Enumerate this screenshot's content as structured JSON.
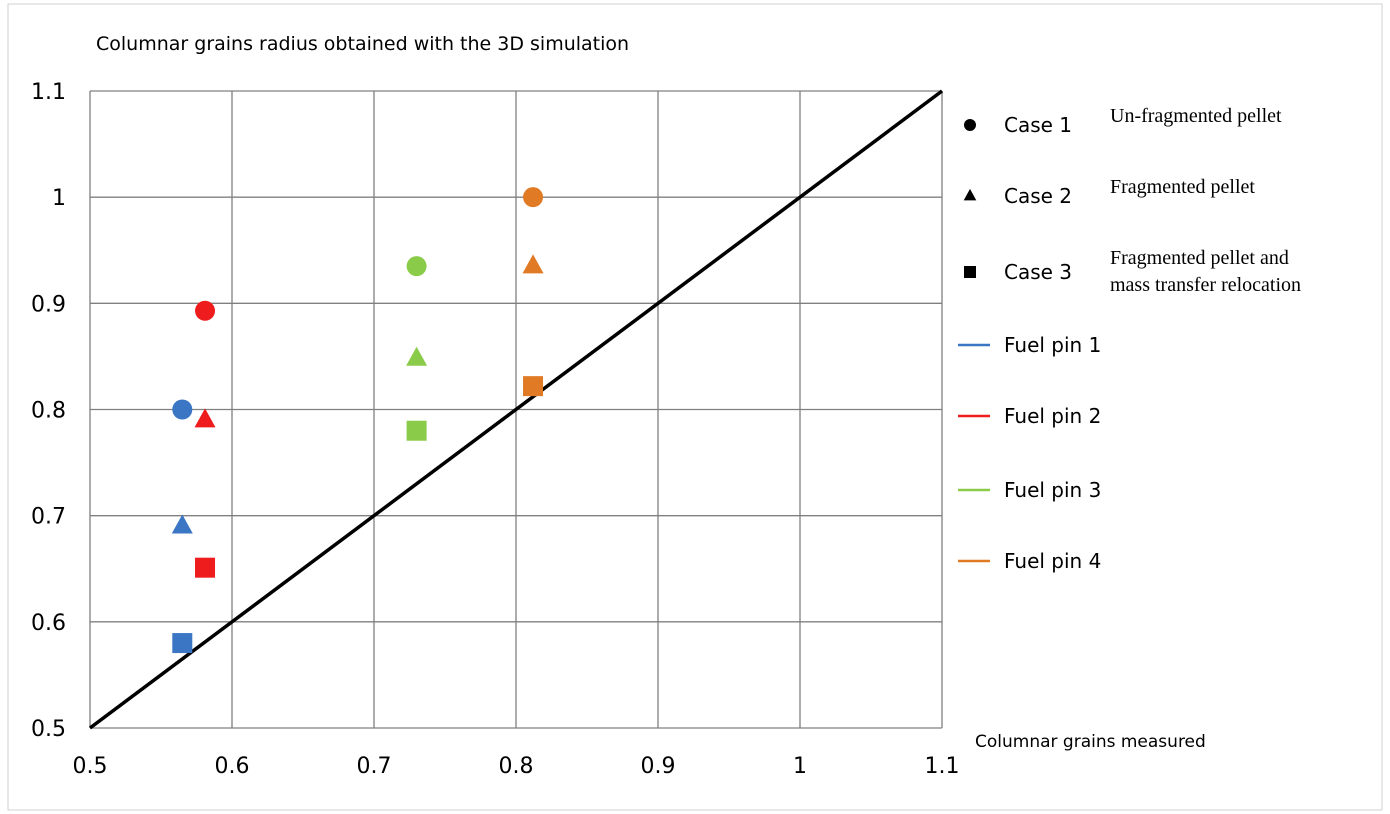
{
  "chart_data": {
    "type": "scatter",
    "title": "Columnar grains radius obtained with the 3D simulation",
    "xlabel": "Columnar grains measured",
    "ylabel": "",
    "xlim": [
      0.5,
      1.1
    ],
    "ylim": [
      0.5,
      1.1
    ],
    "x_ticks": [
      "0.5",
      "0.6",
      "0.7",
      "0.8",
      "0.9",
      "1",
      "1.1"
    ],
    "y_ticks": [
      "0.5",
      "0.6",
      "0.7",
      "0.8",
      "0.9",
      "1",
      "1.1"
    ],
    "grid": true,
    "legend_position": "right",
    "reference_line": {
      "from": [
        0.5,
        0.5
      ],
      "to": [
        1.1,
        1.1
      ],
      "color": "#000000"
    },
    "marker_legend": [
      {
        "label": "Case 1",
        "marker": "circle",
        "description": "Un-fragmented pellet"
      },
      {
        "label": "Case 2",
        "marker": "triangle",
        "description": "Fragmented pellet"
      },
      {
        "label": "Case 3",
        "marker": "square",
        "description": "Fragmented pellet and",
        "description2": "mass transfer relocation"
      }
    ],
    "series": [
      {
        "name": "Fuel pin 1",
        "color": "#3A76C4",
        "points": [
          {
            "x": 0.565,
            "y": 0.8,
            "case": "Case 1",
            "marker": "circle"
          },
          {
            "x": 0.565,
            "y": 0.69,
            "case": "Case 2",
            "marker": "triangle"
          },
          {
            "x": 0.565,
            "y": 0.58,
            "case": "Case 3",
            "marker": "square"
          }
        ]
      },
      {
        "name": "Fuel pin 2",
        "color": "#EE1C1C",
        "points": [
          {
            "x": 0.581,
            "y": 0.893,
            "case": "Case 1",
            "marker": "circle"
          },
          {
            "x": 0.581,
            "y": 0.79,
            "case": "Case 2",
            "marker": "triangle"
          },
          {
            "x": 0.581,
            "y": 0.651,
            "case": "Case 3",
            "marker": "square"
          }
        ]
      },
      {
        "name": "Fuel pin 3",
        "color": "#8BCB4A",
        "points": [
          {
            "x": 0.73,
            "y": 0.935,
            "case": "Case 1",
            "marker": "circle"
          },
          {
            "x": 0.73,
            "y": 0.848,
            "case": "Case 2",
            "marker": "triangle"
          },
          {
            "x": 0.73,
            "y": 0.78,
            "case": "Case 3",
            "marker": "square"
          }
        ]
      },
      {
        "name": "Fuel pin 4",
        "color": "#E07A25",
        "points": [
          {
            "x": 0.812,
            "y": 1.0,
            "case": "Case 1",
            "marker": "circle"
          },
          {
            "x": 0.812,
            "y": 0.935,
            "case": "Case 2",
            "marker": "triangle"
          },
          {
            "x": 0.812,
            "y": 0.822,
            "case": "Case 3",
            "marker": "square"
          }
        ]
      }
    ]
  }
}
